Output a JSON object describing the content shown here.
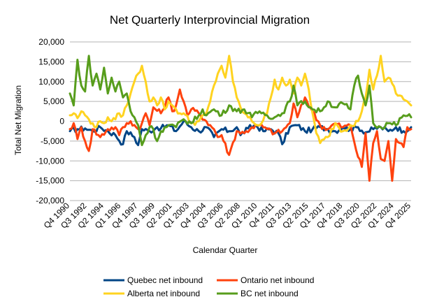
{
  "chart_data": {
    "type": "line",
    "title": "Net Quarterly Interprovincial Migration",
    "xlabel": "Calendar Quarter",
    "ylabel": "Total Net Migration",
    "ylim": [
      -20000,
      20000
    ],
    "y_ticks": [
      -20000,
      -15000,
      -10000,
      -5000,
      0,
      5000,
      10000,
      15000,
      20000
    ],
    "y_tick_labels": [
      "-20,000",
      "-15,000",
      "-10,000",
      "-5,000",
      "0",
      "5,000",
      "10,000",
      "15,000",
      "20,000"
    ],
    "grid": true,
    "legend_position": "bottom",
    "x_first": "Q4 1990",
    "x_last": "Q4 2025",
    "x_tick_labels": [
      "Q4 1990",
      "Q3 1992",
      "Q2 1994",
      "Q1 1996",
      "Q4 1997",
      "Q3 1999",
      "Q2 2001",
      "Q1 2003",
      "Q4 2004",
      "Q3 2006",
      "Q2 2008",
      "Q1 2010",
      "Q4 2011",
      "Q3 2013",
      "Q2 2015",
      "Q1 2017",
      "Q4 2018",
      "Q3 2020",
      "Q2 2022",
      "Q1 2024",
      "Q4 2025"
    ],
    "series": [
      {
        "name": "Quebec net inbound",
        "color": "#004586",
        "keypoints": [
          [
            0,
            -2500
          ],
          [
            4,
            -2000
          ],
          [
            8,
            -1800
          ],
          [
            12,
            -2500
          ],
          [
            16,
            -1500
          ],
          [
            20,
            -2500
          ],
          [
            24,
            -3500
          ],
          [
            28,
            -5800
          ],
          [
            30,
            -2500
          ],
          [
            34,
            -4000
          ],
          [
            36,
            -6000
          ],
          [
            38,
            -2000
          ],
          [
            42,
            -2500
          ],
          [
            46,
            -1500
          ],
          [
            48,
            -1800
          ],
          [
            52,
            -1000
          ],
          [
            56,
            -2500
          ],
          [
            60,
            0
          ],
          [
            64,
            -1500
          ],
          [
            68,
            -2500
          ],
          [
            72,
            -1500
          ],
          [
            76,
            -4000
          ],
          [
            80,
            -2000
          ],
          [
            84,
            -2500
          ],
          [
            88,
            -1500
          ],
          [
            90,
            -3500
          ],
          [
            94,
            -1800
          ],
          [
            98,
            -1000
          ],
          [
            102,
            -2500
          ],
          [
            106,
            -2000
          ],
          [
            110,
            -3000
          ],
          [
            112,
            -5800
          ],
          [
            116,
            -1500
          ],
          [
            120,
            -1000
          ],
          [
            124,
            -2500
          ],
          [
            128,
            -2000
          ],
          [
            132,
            -1500
          ],
          [
            136,
            -2000
          ],
          [
            140,
            -2500
          ],
          [
            144,
            -1500
          ],
          [
            148,
            -2000
          ],
          [
            152,
            -1500
          ],
          [
            156,
            -2800
          ],
          [
            160,
            -2000
          ],
          [
            164,
            -1500
          ],
          [
            168,
            -2500
          ],
          [
            172,
            -1500
          ],
          [
            176,
            -2500
          ],
          [
            180,
            -1500
          ]
        ]
      },
      {
        "name": "Ontario net inbound",
        "color": "#ff420e",
        "keypoints": [
          [
            0,
            -2000
          ],
          [
            2,
            -500
          ],
          [
            4,
            -4500
          ],
          [
            6,
            -1500
          ],
          [
            8,
            -5000
          ],
          [
            10,
            -7500
          ],
          [
            12,
            -2000
          ],
          [
            16,
            -4000
          ],
          [
            20,
            -2000
          ],
          [
            24,
            -1500
          ],
          [
            26,
            -3500
          ],
          [
            28,
            -1500
          ],
          [
            32,
            0
          ],
          [
            36,
            -2000
          ],
          [
            38,
            -500
          ],
          [
            40,
            2000
          ],
          [
            42,
            -1000
          ],
          [
            44,
            3500
          ],
          [
            48,
            2000
          ],
          [
            52,
            6000
          ],
          [
            54,
            2500
          ],
          [
            56,
            4000
          ],
          [
            58,
            8000
          ],
          [
            60,
            5000
          ],
          [
            62,
            1500
          ],
          [
            64,
            3000
          ],
          [
            68,
            2000
          ],
          [
            72,
            0
          ],
          [
            76,
            -2000
          ],
          [
            78,
            -4000
          ],
          [
            80,
            -3500
          ],
          [
            84,
            -8500
          ],
          [
            88,
            -2500
          ],
          [
            92,
            -3000
          ],
          [
            96,
            -1500
          ],
          [
            100,
            -1000
          ],
          [
            104,
            -2000
          ],
          [
            108,
            -3000
          ],
          [
            112,
            -2500
          ],
          [
            116,
            -500
          ],
          [
            118,
            4500
          ],
          [
            120,
            1000
          ],
          [
            124,
            6000
          ],
          [
            128,
            2500
          ],
          [
            132,
            -1000
          ],
          [
            136,
            -2000
          ],
          [
            140,
            -500
          ],
          [
            144,
            -1500
          ],
          [
            148,
            -1000
          ],
          [
            152,
            -9000
          ],
          [
            154,
            -11500
          ],
          [
            156,
            -3000
          ],
          [
            158,
            -15000
          ],
          [
            160,
            -5500
          ],
          [
            162,
            -2500
          ],
          [
            164,
            -9500
          ],
          [
            166,
            -10000
          ],
          [
            168,
            -5000
          ],
          [
            170,
            -15000
          ],
          [
            172,
            -4500
          ],
          [
            174,
            -5500
          ],
          [
            176,
            -6500
          ],
          [
            178,
            -1500
          ],
          [
            180,
            -2000
          ]
        ]
      },
      {
        "name": "Alberta net inbound",
        "color": "#ffd320",
        "keypoints": [
          [
            0,
            1500
          ],
          [
            2,
            2000
          ],
          [
            4,
            800
          ],
          [
            6,
            2500
          ],
          [
            8,
            1500
          ],
          [
            10,
            500
          ],
          [
            12,
            -500
          ],
          [
            14,
            -1500
          ],
          [
            16,
            0
          ],
          [
            18,
            -500
          ],
          [
            20,
            1000
          ],
          [
            22,
            0
          ],
          [
            24,
            500
          ],
          [
            26,
            2000
          ],
          [
            28,
            1500
          ],
          [
            30,
            4000
          ],
          [
            32,
            7000
          ],
          [
            34,
            10000
          ],
          [
            36,
            12000
          ],
          [
            38,
            14000
          ],
          [
            40,
            10000
          ],
          [
            42,
            5000
          ],
          [
            44,
            6000
          ],
          [
            46,
            4000
          ],
          [
            48,
            6000
          ],
          [
            50,
            3000
          ],
          [
            52,
            5000
          ],
          [
            54,
            4000
          ],
          [
            56,
            3000
          ],
          [
            58,
            2000
          ],
          [
            60,
            2000
          ],
          [
            64,
            -500
          ],
          [
            68,
            0
          ],
          [
            72,
            2000
          ],
          [
            74,
            5000
          ],
          [
            76,
            9000
          ],
          [
            78,
            12000
          ],
          [
            80,
            14000
          ],
          [
            82,
            11000
          ],
          [
            84,
            16500
          ],
          [
            86,
            10000
          ],
          [
            88,
            6000
          ],
          [
            90,
            3500
          ],
          [
            92,
            2000
          ],
          [
            96,
            0
          ],
          [
            100,
            -1000
          ],
          [
            104,
            2000
          ],
          [
            106,
            6000
          ],
          [
            108,
            10500
          ],
          [
            110,
            8000
          ],
          [
            112,
            11000
          ],
          [
            114,
            9000
          ],
          [
            116,
            10500
          ],
          [
            118,
            7000
          ],
          [
            120,
            11000
          ],
          [
            122,
            9000
          ],
          [
            124,
            12000
          ],
          [
            126,
            8000
          ],
          [
            128,
            2000
          ],
          [
            130,
            -3000
          ],
          [
            132,
            -5500
          ],
          [
            136,
            -4000
          ],
          [
            140,
            -500
          ],
          [
            144,
            -2500
          ],
          [
            148,
            -1000
          ],
          [
            152,
            0
          ],
          [
            154,
            2500
          ],
          [
            156,
            6000
          ],
          [
            158,
            13000
          ],
          [
            160,
            8000
          ],
          [
            162,
            11500
          ],
          [
            164,
            16500
          ],
          [
            166,
            10000
          ],
          [
            168,
            11000
          ],
          [
            170,
            9500
          ],
          [
            172,
            7000
          ],
          [
            174,
            6500
          ],
          [
            176,
            5500
          ],
          [
            178,
            5000
          ],
          [
            180,
            4000
          ]
        ]
      },
      {
        "name": "BC net inbound",
        "color": "#579d1c",
        "keypoints": [
          [
            0,
            7000
          ],
          [
            2,
            4000
          ],
          [
            4,
            15500
          ],
          [
            6,
            9000
          ],
          [
            8,
            7500
          ],
          [
            10,
            16500
          ],
          [
            12,
            9000
          ],
          [
            14,
            12000
          ],
          [
            16,
            8000
          ],
          [
            18,
            13500
          ],
          [
            20,
            7000
          ],
          [
            22,
            11000
          ],
          [
            24,
            7500
          ],
          [
            26,
            10000
          ],
          [
            28,
            6000
          ],
          [
            30,
            7000
          ],
          [
            32,
            2500
          ],
          [
            34,
            1000
          ],
          [
            36,
            -1000
          ],
          [
            38,
            -6000
          ],
          [
            40,
            -3500
          ],
          [
            42,
            -1500
          ],
          [
            44,
            -2000
          ],
          [
            46,
            -5000
          ],
          [
            48,
            -2500
          ],
          [
            52,
            -1000
          ],
          [
            56,
            -1500
          ],
          [
            60,
            500
          ],
          [
            64,
            -500
          ],
          [
            68,
            1500
          ],
          [
            70,
            3000
          ],
          [
            72,
            1500
          ],
          [
            76,
            3000
          ],
          [
            80,
            1500
          ],
          [
            84,
            4000
          ],
          [
            88,
            2500
          ],
          [
            92,
            3000
          ],
          [
            96,
            1000
          ],
          [
            100,
            2500
          ],
          [
            104,
            1500
          ],
          [
            108,
            1000
          ],
          [
            112,
            2000
          ],
          [
            116,
            5000
          ],
          [
            118,
            9000
          ],
          [
            120,
            4000
          ],
          [
            124,
            5000
          ],
          [
            128,
            3000
          ],
          [
            132,
            2500
          ],
          [
            136,
            5000
          ],
          [
            140,
            3500
          ],
          [
            144,
            4500
          ],
          [
            148,
            3000
          ],
          [
            150,
            9000
          ],
          [
            152,
            11500
          ],
          [
            154,
            7000
          ],
          [
            156,
            4000
          ],
          [
            158,
            9000
          ],
          [
            160,
            -500
          ],
          [
            164,
            -1500
          ],
          [
            168,
            -500
          ],
          [
            172,
            -1000
          ],
          [
            176,
            1500
          ],
          [
            180,
            1000
          ]
        ]
      }
    ]
  }
}
